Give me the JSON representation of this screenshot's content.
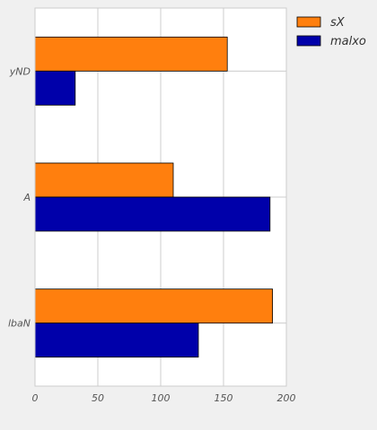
{
  "chart_data": {
    "type": "bar",
    "orientation": "horizontal",
    "categories": [
      "yND",
      "A",
      "lbaN"
    ],
    "series": [
      {
        "name": "sX",
        "values": [
          153,
          110,
          189
        ],
        "color": "#ff7f0e"
      },
      {
        "name": "malxo",
        "values": [
          32,
          187,
          130
        ],
        "color": "#0000aa"
      }
    ],
    "xlim": [
      0,
      200
    ],
    "xticks": [
      "0",
      "50",
      "100",
      "150",
      "200"
    ],
    "grid": true,
    "legend": "top-right",
    "title": "",
    "xlabel": "",
    "ylabel": ""
  }
}
